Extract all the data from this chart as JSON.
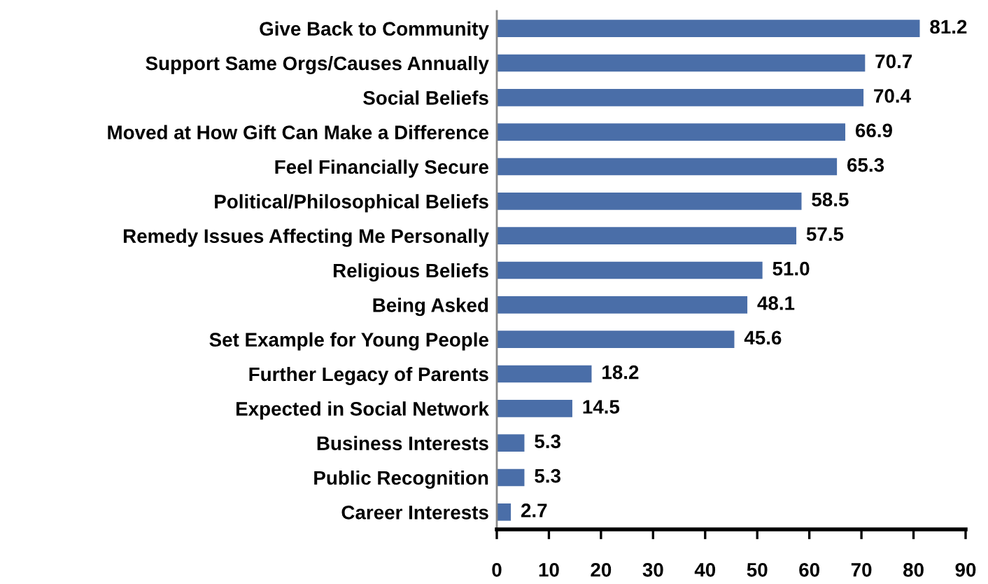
{
  "chart_data": {
    "type": "bar",
    "orientation": "horizontal",
    "categories": [
      "Give Back to Community",
      "Support Same Orgs/Causes Annually",
      "Social Beliefs",
      "Moved at How Gift Can Make a Difference",
      "Feel Financially Secure",
      "Political/Philosophical Beliefs",
      "Remedy Issues Affecting Me Personally",
      "Religious Beliefs",
      "Being Asked",
      "Set Example for Young People",
      "Further Legacy of Parents",
      "Expected in Social Network",
      "Business Interests",
      "Public Recognition",
      "Career Interests"
    ],
    "values": [
      81.2,
      70.7,
      70.4,
      66.9,
      65.3,
      58.5,
      57.5,
      51.0,
      48.1,
      45.6,
      18.2,
      14.5,
      5.3,
      5.3,
      2.7
    ],
    "value_labels": [
      "81.2",
      "70.7",
      "70.4",
      "66.9",
      "65.3",
      "58.5",
      "57.5",
      "51.0",
      "48.1",
      "45.6",
      "18.2",
      "14.5",
      "5.3",
      "5.3",
      "2.7"
    ],
    "color": "#4a6ea8",
    "xlim": [
      0,
      90
    ],
    "xticks": [
      0,
      10,
      20,
      30,
      40,
      50,
      60,
      70,
      80,
      90
    ],
    "grid": false,
    "legend": false
  }
}
